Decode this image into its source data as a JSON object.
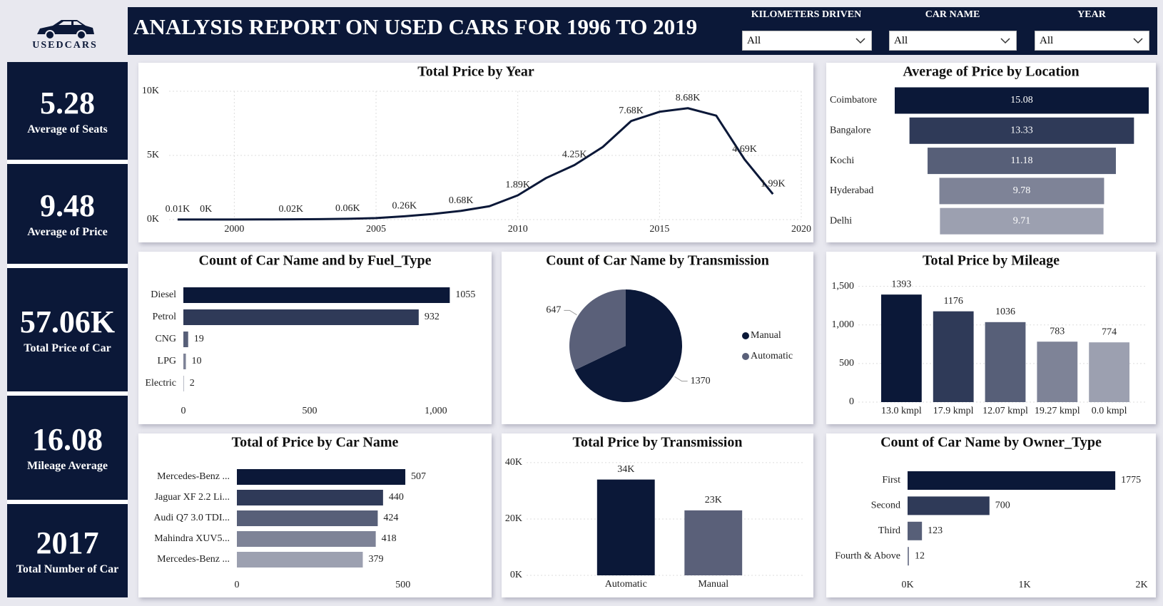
{
  "header": {
    "logo": "USEDCARS",
    "title": "ANALYSIS REPORT ON USED CARS FOR 1996 TO 2019"
  },
  "filters": [
    {
      "label": "KILOMETERS DRIVEN",
      "value": "All"
    },
    {
      "label": "CAR NAME",
      "value": "All"
    },
    {
      "label": "YEAR",
      "value": "All"
    }
  ],
  "kpis": [
    {
      "value": "5.28",
      "label": "Average of Seats"
    },
    {
      "value": "9.48",
      "label": "Average of Price"
    },
    {
      "value": "57.06K",
      "label": "Total Price of Car"
    },
    {
      "value": "16.08",
      "label": "Mileage Average"
    },
    {
      "value": "2017",
      "label": "Total Number of Car"
    }
  ],
  "chart_data": [
    {
      "type": "line",
      "title": "Total Price by Year",
      "x": [
        1998,
        1999,
        2000,
        2001,
        2002,
        2003,
        2004,
        2005,
        2006,
        2007,
        2008,
        2009,
        2010,
        2011,
        2012,
        2013,
        2014,
        2015,
        2016,
        2017,
        2018,
        2019
      ],
      "values": [
        10,
        4,
        6,
        12,
        20,
        35,
        60,
        120,
        260,
        440,
        680,
        1040,
        1890,
        3240,
        4250,
        5660,
        7680,
        8400,
        8680,
        8100,
        4690,
        1990
      ],
      "value_labels": [
        "0.01K",
        "0K",
        null,
        null,
        "0.02K",
        null,
        "0.06K",
        null,
        "0.26K",
        null,
        "0.68K",
        null,
        "1.89K",
        null,
        "4.25K",
        null,
        "7.68K",
        null,
        "8.68K",
        null,
        "4.69K",
        "1.99K"
      ],
      "color": "#0b1838",
      "xlim": [
        1997.7,
        2020
      ],
      "xticks": [
        2000,
        2005,
        2010,
        2015,
        2020
      ],
      "ylim": [
        0,
        10000
      ],
      "yticks": [
        {
          "value": 0,
          "label": "0K"
        },
        {
          "value": 5000,
          "label": "5K"
        },
        {
          "value": 10000,
          "label": "10K"
        }
      ],
      "grid": true
    },
    {
      "type": "funnel",
      "title": "Average of Price by Location",
      "categories": [
        "Coimbatore",
        "Bangalore",
        "Kochi",
        "Hyderabad",
        "Delhi"
      ],
      "values": [
        15.08,
        13.33,
        11.18,
        9.78,
        9.71
      ],
      "colors": [
        "#0b1838",
        "#2f3a58",
        "#575f78",
        "#7e8397",
        "#9ca0b0"
      ]
    },
    {
      "type": "bar",
      "orientation": "horizontal",
      "title": "Count of Car Name and by Fuel_Type",
      "categories": [
        "Diesel",
        "Petrol",
        "CNG",
        "LPG",
        "Electric"
      ],
      "values": [
        1055,
        932,
        19,
        10,
        2
      ],
      "colors": [
        "#0b1838",
        "#2f3a58",
        "#575f78",
        "#7e8397",
        "#9ca0b0"
      ],
      "xlim": [
        0,
        1150
      ],
      "xticks": [
        0,
        500,
        {
          "value": 1000,
          "label": "1,000"
        }
      ],
      "grid": false
    },
    {
      "type": "pie",
      "title": "Count of Car Name by Transmission",
      "categories": [
        "Manual",
        "Automatic"
      ],
      "values": [
        1370,
        647
      ],
      "colors": [
        "#0b1838",
        "#5a6079"
      ],
      "legend": "right"
    },
    {
      "type": "bar",
      "orientation": "vertical",
      "title": "Total Price by Mileage",
      "categories": [
        "13.0 kmpl",
        "17.9 kmpl",
        "12.07 kmpl",
        "19.27 kmpl",
        "0.0 kmpl"
      ],
      "values": [
        1393,
        1176,
        1036,
        783,
        774
      ],
      "colors": [
        "#0b1838",
        "#2f3a58",
        "#575f78",
        "#7e8397",
        "#9ca0b0"
      ],
      "ylim": [
        0,
        1570
      ],
      "yticks": [
        0,
        500,
        {
          "value": 1000,
          "label": "1,000"
        },
        {
          "value": 1500,
          "label": "1,500"
        }
      ],
      "grid": true
    },
    {
      "type": "bar",
      "orientation": "horizontal",
      "title": "Total of Price by Car Name",
      "categories": [
        "Mercedes-Benz ...",
        "Jaguar XF 2.2 Li...",
        "Audi Q7 3.0 TDI...",
        "Mahindra XUV5...",
        "Mercedes-Benz ..."
      ],
      "values": [
        507,
        440,
        424,
        418,
        379
      ],
      "colors": [
        "#0b1838",
        "#2f3a58",
        "#575f78",
        "#7e8397",
        "#9ca0b0"
      ],
      "xlim": [
        0,
        625
      ],
      "xticks": [
        0,
        500
      ],
      "grid": false
    },
    {
      "type": "bar",
      "orientation": "vertical",
      "title": "Total Price by Transmission",
      "categories": [
        "Automatic",
        "Manual"
      ],
      "values": [
        34000,
        23060
      ],
      "value_labels": [
        "34K",
        "23K"
      ],
      "colors": [
        "#0b1838",
        "#5a6079"
      ],
      "ylim": [
        0,
        42000
      ],
      "yticks": [
        {
          "value": 0,
          "label": "0K"
        },
        {
          "value": 20000,
          "label": "20K"
        },
        {
          "value": 40000,
          "label": "40K"
        }
      ],
      "grid": true
    },
    {
      "type": "bar",
      "orientation": "horizontal",
      "title": "Count of Car Name by Owner_Type",
      "categories": [
        "First",
        "Second",
        "Third",
        "Fourth & Above"
      ],
      "values": [
        1775,
        700,
        123,
        12
      ],
      "colors": [
        "#0b1838",
        "#2f3a58",
        "#575f78",
        "#7e8397"
      ],
      "xlim": [
        0,
        2000
      ],
      "xticks": [
        {
          "value": 0,
          "label": "0K"
        },
        {
          "value": 1000,
          "label": "1K"
        },
        {
          "value": 2000,
          "label": "2K"
        }
      ],
      "grid": false
    }
  ]
}
